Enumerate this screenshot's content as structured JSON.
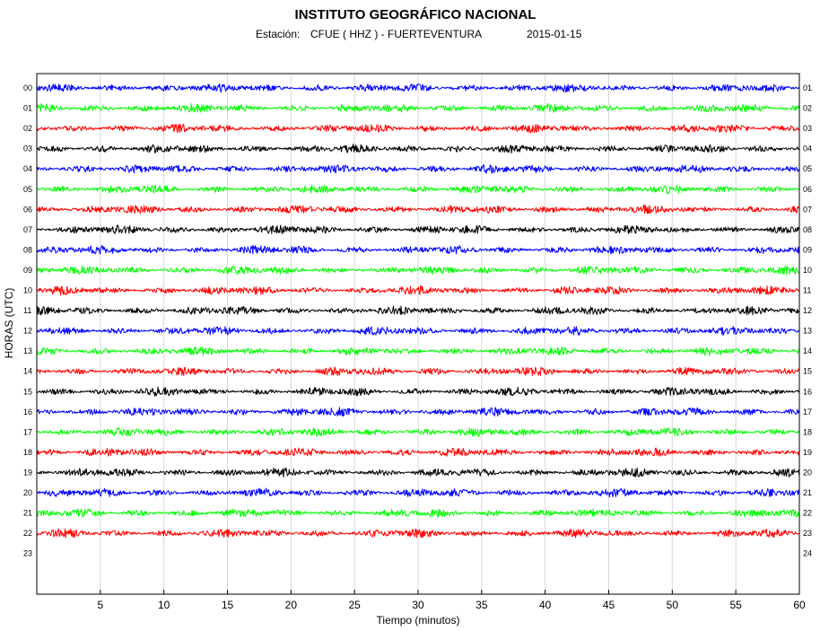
{
  "chart_data": {
    "type": "line",
    "title": "INSTITUTO GEOGRÁFICO NACIONAL",
    "station_prefix": "Estación:",
    "station": "CFUE ( HHZ ) - FUERTEVENTURA",
    "date": "2015-01-15",
    "xlabel": "Tiempo (minutos)",
    "ylabel": "HORAS (UTC)",
    "xlim": [
      0,
      60
    ],
    "x_ticks": [
      5,
      10,
      15,
      20,
      25,
      30,
      35,
      40,
      45,
      50,
      55,
      60
    ],
    "hour_range": [
      0,
      24
    ],
    "left_hour_labels": [
      "00",
      "01",
      "02",
      "03",
      "04",
      "05",
      "06",
      "07",
      "08",
      "09",
      "10",
      "11",
      "12",
      "13",
      "14",
      "15",
      "16",
      "17",
      "18",
      "19",
      "20",
      "21",
      "22",
      "23"
    ],
    "right_hour_labels": [
      "01",
      "02",
      "03",
      "04",
      "05",
      "06",
      "07",
      "08",
      "09",
      "10",
      "11",
      "12",
      "13",
      "14",
      "15",
      "16",
      "17",
      "18",
      "19",
      "20",
      "21",
      "22",
      "23",
      "24"
    ],
    "trace_color_cycle": [
      "#0000ff",
      "#00ff00",
      "#ff0000",
      "#000000"
    ],
    "grid_color": "#d8d8d8",
    "series": [
      {
        "name": "00",
        "start_hour": 0,
        "end_minute": 60
      },
      {
        "name": "01",
        "start_hour": 1,
        "end_minute": 60
      },
      {
        "name": "02",
        "start_hour": 2,
        "end_minute": 60
      },
      {
        "name": "03",
        "start_hour": 3,
        "end_minute": 60
      },
      {
        "name": "04",
        "start_hour": 4,
        "end_minute": 60
      },
      {
        "name": "05",
        "start_hour": 5,
        "end_minute": 60
      },
      {
        "name": "06",
        "start_hour": 6,
        "end_minute": 60
      },
      {
        "name": "07",
        "start_hour": 7,
        "end_minute": 60
      },
      {
        "name": "08",
        "start_hour": 8,
        "end_minute": 60
      },
      {
        "name": "09",
        "start_hour": 9,
        "end_minute": 60
      },
      {
        "name": "10",
        "start_hour": 10,
        "end_minute": 60
      },
      {
        "name": "11",
        "start_hour": 11,
        "end_minute": 60
      },
      {
        "name": "12",
        "start_hour": 12,
        "end_minute": 60
      },
      {
        "name": "13",
        "start_hour": 13,
        "end_minute": 60
      },
      {
        "name": "14",
        "start_hour": 14,
        "end_minute": 60
      },
      {
        "name": "15",
        "start_hour": 15,
        "end_minute": 60
      },
      {
        "name": "16",
        "start_hour": 16,
        "end_minute": 60
      },
      {
        "name": "17",
        "start_hour": 17,
        "end_minute": 60
      },
      {
        "name": "18",
        "start_hour": 18,
        "end_minute": 60
      },
      {
        "name": "19",
        "start_hour": 19,
        "end_minute": 60
      },
      {
        "name": "20",
        "start_hour": 20,
        "end_minute": 60
      },
      {
        "name": "21",
        "start_hour": 21,
        "end_minute": 60
      },
      {
        "name": "22",
        "start_hour": 22,
        "end_minute": 60
      }
    ]
  }
}
